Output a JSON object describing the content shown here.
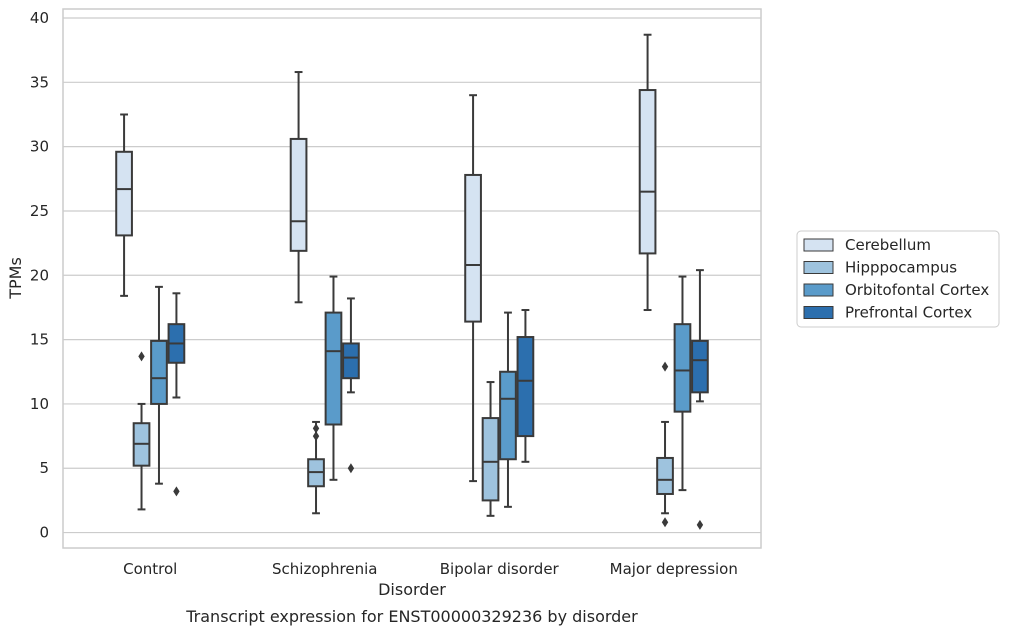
{
  "caption": "Transcript expression for ENST00000329236 by disorder",
  "chart_data": {
    "type": "box",
    "xlabel": "Disorder",
    "ylabel": "TPMs",
    "ylim": [
      -1.2,
      40.7
    ],
    "yticks": [
      0,
      5,
      10,
      15,
      20,
      25,
      30,
      35,
      40
    ],
    "grid": true,
    "legend_position": "right",
    "categories": [
      "Control",
      "Schizophrenia",
      "Bipolar disorder",
      "Major depression"
    ],
    "series": [
      {
        "name": "Cerebellum",
        "color": "#d5e3f2",
        "boxes": [
          {
            "whislo": 18.4,
            "q1": 23.1,
            "med": 26.7,
            "q3": 29.6,
            "whishi": 32.5,
            "fliers": []
          },
          {
            "whislo": 17.9,
            "q1": 21.9,
            "med": 24.2,
            "q3": 30.6,
            "whishi": 35.8,
            "fliers": []
          },
          {
            "whislo": 4.0,
            "q1": 16.4,
            "med": 20.8,
            "q3": 27.8,
            "whishi": 34.0,
            "fliers": []
          },
          {
            "whislo": 17.3,
            "q1": 21.7,
            "med": 26.5,
            "q3": 34.4,
            "whishi": 38.7,
            "fliers": []
          }
        ]
      },
      {
        "name": "Hipppocampus",
        "color": "#9ec3de",
        "boxes": [
          {
            "whislo": 1.8,
            "q1": 5.2,
            "med": 6.9,
            "q3": 8.5,
            "whishi": 10.0,
            "fliers": [
              13.7
            ]
          },
          {
            "whislo": 1.5,
            "q1": 3.6,
            "med": 4.7,
            "q3": 5.7,
            "whishi": 8.6,
            "fliers": [
              7.5,
              8.1
            ]
          },
          {
            "whislo": 1.3,
            "q1": 2.5,
            "med": 5.5,
            "q3": 8.9,
            "whishi": 11.7,
            "fliers": []
          },
          {
            "whislo": 1.5,
            "q1": 3.0,
            "med": 4.1,
            "q3": 5.8,
            "whishi": 8.6,
            "fliers": [
              0.8,
              12.9
            ]
          }
        ]
      },
      {
        "name": "Orbitofontal Cortex",
        "color": "#5a9bca",
        "boxes": [
          {
            "whislo": 3.8,
            "q1": 10.0,
            "med": 12.0,
            "q3": 14.9,
            "whishi": 19.1,
            "fliers": []
          },
          {
            "whislo": 4.1,
            "q1": 8.4,
            "med": 14.1,
            "q3": 17.1,
            "whishi": 19.9,
            "fliers": []
          },
          {
            "whislo": 2.0,
            "q1": 5.7,
            "med": 10.4,
            "q3": 12.5,
            "whishi": 17.1,
            "fliers": []
          },
          {
            "whislo": 3.3,
            "q1": 9.4,
            "med": 12.6,
            "q3": 16.2,
            "whishi": 19.9,
            "fliers": []
          }
        ]
      },
      {
        "name": "Prefrontal Cortex",
        "color": "#2c6fae",
        "boxes": [
          {
            "whislo": 10.5,
            "q1": 13.2,
            "med": 14.7,
            "q3": 16.2,
            "whishi": 18.6,
            "fliers": [
              3.2
            ]
          },
          {
            "whislo": 10.9,
            "q1": 12.0,
            "med": 13.6,
            "q3": 14.7,
            "whishi": 18.2,
            "fliers": [
              5.0
            ]
          },
          {
            "whislo": 5.5,
            "q1": 7.5,
            "med": 11.8,
            "q3": 15.2,
            "whishi": 17.3,
            "fliers": []
          },
          {
            "whislo": 10.2,
            "q1": 10.9,
            "med": 13.4,
            "q3": 14.9,
            "whishi": 20.4,
            "fliers": [
              0.6
            ]
          }
        ]
      }
    ]
  }
}
